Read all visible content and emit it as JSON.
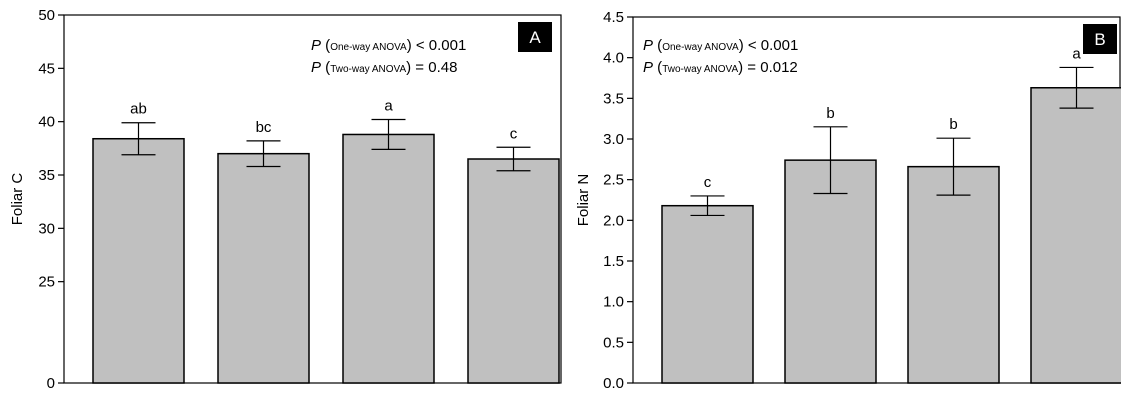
{
  "colors": {
    "bar_fill": "#c0c0c0",
    "bar_stroke": "#000000",
    "badge_bg": "#000000",
    "badge_text": "#ffffff"
  },
  "chart_data": [
    {
      "type": "bar",
      "panel_label": "A",
      "ylabel": "Foliar C",
      "ylim": [
        0,
        50
      ],
      "y_break": [
        0,
        20
      ],
      "yticks": [
        "0",
        "25",
        "30",
        "35",
        "40",
        "45",
        "50"
      ],
      "categories": [
        "",
        "",
        "",
        ""
      ],
      "values": [
        38.4,
        37.0,
        38.8,
        36.5
      ],
      "errors": [
        1.5,
        1.2,
        1.4,
        1.1
      ],
      "sig_letters": [
        "ab",
        "bc",
        "a",
        "c"
      ],
      "grid": false,
      "anova": [
        {
          "p": "P",
          "open": " (",
          "test": "One-way ANOVA",
          "rest": ") < 0.001"
        },
        {
          "p": "P",
          "open": " (",
          "test": "Two-way ANOVA",
          "rest": ") = 0.48"
        }
      ]
    },
    {
      "type": "bar",
      "panel_label": "B",
      "ylabel": "Foliar N",
      "ylim": [
        0,
        4.5
      ],
      "yticks": [
        "0.0",
        "0.5",
        "1.0",
        "1.5",
        "2.0",
        "2.5",
        "3.0",
        "3.5",
        "4.0",
        "4.5"
      ],
      "categories": [
        "",
        "",
        "",
        ""
      ],
      "values": [
        2.18,
        2.74,
        2.66,
        3.63
      ],
      "errors": [
        0.12,
        0.41,
        0.35,
        0.25
      ],
      "sig_letters": [
        "c",
        "b",
        "b",
        "a"
      ],
      "grid": false,
      "anova": [
        {
          "p": "P",
          "open": " (",
          "test": "One-way ANOVA",
          "rest": ") < 0.001"
        },
        {
          "p": "P",
          "open": " (",
          "test": "Two-way ANOVA",
          "rest": ") = 0.012"
        }
      ]
    }
  ]
}
